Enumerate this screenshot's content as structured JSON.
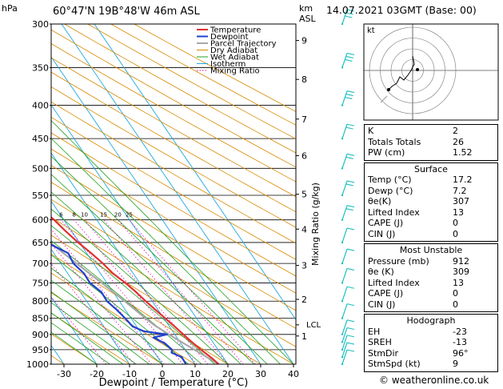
{
  "header": {
    "pressure_unit": "hPa",
    "location": "60°47'N  19B°48'W  46m  ASL",
    "km_label": "km",
    "asl_label": "ASL",
    "date": "14.07.2021  03GMT  (Base: 00)"
  },
  "credit": "© weatheronline.co.uk",
  "colors": {
    "temperature": "#e03030",
    "dewpoint": "#2040d0",
    "parcel": "#a8a8a8",
    "dry_adiabat": "#d88a00",
    "wet_adiabat": "#20a020",
    "isotherm": "#20a8e0",
    "mixing_ratio": "#e000b0",
    "wind": "#20c0c0"
  },
  "chart_data": {
    "type": "line",
    "xlabel": "Dewpoint / Temperature (°C)",
    "ylabel_right": "Mixing Ratio (g/kg)",
    "x_ticks": [
      -30,
      -20,
      -10,
      0,
      10,
      20,
      30,
      40
    ],
    "pressure_levels": [
      300,
      350,
      400,
      450,
      500,
      550,
      600,
      650,
      700,
      750,
      800,
      850,
      900,
      950,
      1000
    ],
    "height_km": [
      {
        "km": "1",
        "p": 905
      },
      {
        "km": "2",
        "p": 795
      },
      {
        "km": "3",
        "p": 705
      },
      {
        "km": "4",
        "p": 620
      },
      {
        "km": "5",
        "p": 548
      },
      {
        "km": "6",
        "p": 478
      },
      {
        "km": "7",
        "p": 420
      },
      {
        "km": "8",
        "p": 365
      },
      {
        "km": "9",
        "p": 318
      }
    ],
    "lcl": {
      "label": "LCL",
      "p": 870
    },
    "mixing_ratio_labels": [
      "1",
      "2",
      "3",
      "4",
      "6",
      "8",
      "10",
      "15",
      "20",
      "25"
    ],
    "legend": [
      "Temperature",
      "Dewpoint",
      "Parcel Trajectory",
      "Dry Adiabat",
      "Wet Adiabat",
      "Isotherm",
      "Mixing Ratio"
    ],
    "series": [
      {
        "name": "Temperature",
        "points": [
          [
            1000,
            17.2
          ],
          [
            975,
            16.2
          ],
          [
            950,
            14.8
          ],
          [
            925,
            13.6
          ],
          [
            900,
            12.6
          ],
          [
            875,
            11.6
          ],
          [
            850,
            10.4
          ],
          [
            825,
            9.2
          ],
          [
            800,
            8
          ],
          [
            775,
            7.0
          ],
          [
            750,
            5.6
          ],
          [
            725,
            3.8
          ],
          [
            700,
            2.8
          ],
          [
            675,
            1.4
          ],
          [
            650,
            -0.4
          ],
          [
            625,
            -1.8
          ],
          [
            600,
            -3.0
          ],
          [
            575,
            -4.6
          ],
          [
            550,
            -7.0
          ],
          [
            525,
            -8.6
          ],
          [
            500,
            -11.0
          ],
          [
            475,
            -13.6
          ],
          [
            450,
            -16.4
          ],
          [
            425,
            -19.6
          ],
          [
            400,
            -23.0
          ],
          [
            375,
            -27.0
          ],
          [
            350,
            -31.4
          ],
          [
            325,
            -36.0
          ],
          [
            300,
            -40.2
          ]
        ]
      },
      {
        "name": "Dewpoint",
        "points": [
          [
            1000,
            7.2
          ],
          [
            975,
            7.4
          ],
          [
            960,
            5.2
          ],
          [
            950,
            6.0
          ],
          [
            930,
            5.2
          ],
          [
            910,
            2.8
          ],
          [
            900,
            7.6
          ],
          [
            890,
            1.2
          ],
          [
            875,
            -1.2
          ],
          [
            850,
            -1.8
          ],
          [
            825,
            -2.6
          ],
          [
            800,
            -3.8
          ],
          [
            775,
            -3.6
          ],
          [
            750,
            -5.2
          ],
          [
            725,
            -5.0
          ],
          [
            700,
            -6.2
          ],
          [
            675,
            -5.6
          ],
          [
            650,
            -10.0
          ],
          [
            625,
            -24.0
          ],
          [
            600,
            -29.0
          ],
          [
            575,
            -34.0
          ],
          [
            560,
            -22.0
          ],
          [
            550,
            -18.6
          ],
          [
            540,
            -30.0
          ],
          [
            535,
            -16.8
          ],
          [
            525,
            -44.0
          ],
          [
            515,
            -24.0
          ],
          [
            505,
            -38.0
          ],
          [
            500,
            -23.0
          ],
          [
            480,
            -30.0
          ],
          [
            460,
            -26.0
          ],
          [
            450,
            -26.6
          ],
          [
            425,
            -34.0
          ],
          [
            410,
            -42.0
          ],
          [
            400,
            -36.0
          ],
          [
            390,
            -38.0
          ],
          [
            375,
            -38.0
          ],
          [
            360,
            -40.0
          ],
          [
            350,
            -44.0
          ],
          [
            335,
            -48.0
          ],
          [
            320,
            -44.0
          ],
          [
            310,
            -52.0
          ],
          [
            300,
            -50.0
          ]
        ]
      },
      {
        "name": "Parcel Trajectory",
        "points": [
          [
            1000,
            17.2
          ],
          [
            950,
            12.8
          ],
          [
            900,
            8.2
          ],
          [
            870,
            5.6
          ],
          [
            850,
            4.4
          ],
          [
            800,
            1.6
          ],
          [
            750,
            -1.6
          ],
          [
            700,
            -5.2
          ],
          [
            650,
            -9.0
          ],
          [
            600,
            -13.4
          ],
          [
            550,
            -18.4
          ],
          [
            500,
            -24.2
          ],
          [
            450,
            -31.0
          ],
          [
            400,
            -39.0
          ],
          [
            350,
            -48.0
          ],
          [
            300,
            -58.0
          ]
        ]
      }
    ],
    "hodograph": {
      "label": "kt",
      "rings": [
        10,
        20,
        30,
        40
      ]
    },
    "winds": [
      {
        "p": 1000,
        "kt": 10
      },
      {
        "p": 975,
        "kt": 10
      },
      {
        "p": 950,
        "kt": 10
      },
      {
        "p": 925,
        "kt": 5
      },
      {
        "p": 900,
        "kt": 5
      },
      {
        "p": 850,
        "kt": 5
      },
      {
        "p": 800,
        "kt": 5
      },
      {
        "p": 750,
        "kt": 5
      },
      {
        "p": 700,
        "kt": 10
      },
      {
        "p": 650,
        "kt": 10
      },
      {
        "p": 600,
        "kt": 15
      },
      {
        "p": 550,
        "kt": 15
      },
      {
        "p": 500,
        "kt": 20
      },
      {
        "p": 450,
        "kt": 20
      },
      {
        "p": 400,
        "kt": 25
      },
      {
        "p": 350,
        "kt": 25
      },
      {
        "p": 300,
        "kt": 25
      }
    ]
  },
  "indices": {
    "basic": [
      {
        "label": "K",
        "value": "2"
      },
      {
        "label": "Totals Totals",
        "value": "26"
      },
      {
        "label": "PW (cm)",
        "value": "1.52"
      }
    ],
    "surface_title": "Surface",
    "surface": [
      {
        "label": "Temp (°C)",
        "value": "17.2"
      },
      {
        "label": "Dewp (°C)",
        "value": "7.2"
      },
      {
        "label": "θe(K)",
        "value": "307"
      },
      {
        "label": "Lifted Index",
        "value": "13"
      },
      {
        "label": "CAPE (J)",
        "value": "0"
      },
      {
        "label": "CIN (J)",
        "value": "0"
      }
    ],
    "unstable_title": "Most Unstable",
    "unstable": [
      {
        "label": "Pressure (mb)",
        "value": "912"
      },
      {
        "label": "θe (K)",
        "value": "309"
      },
      {
        "label": "Lifted Index",
        "value": "13"
      },
      {
        "label": "CAPE (J)",
        "value": "0"
      },
      {
        "label": "CIN (J)",
        "value": "0"
      }
    ],
    "hodo_title": "Hodograph",
    "hodo": [
      {
        "label": "EH",
        "value": "-23"
      },
      {
        "label": "SREH",
        "value": "-13"
      },
      {
        "label": "StmDir",
        "value": "96°"
      },
      {
        "label": "StmSpd (kt)",
        "value": "9"
      }
    ]
  }
}
